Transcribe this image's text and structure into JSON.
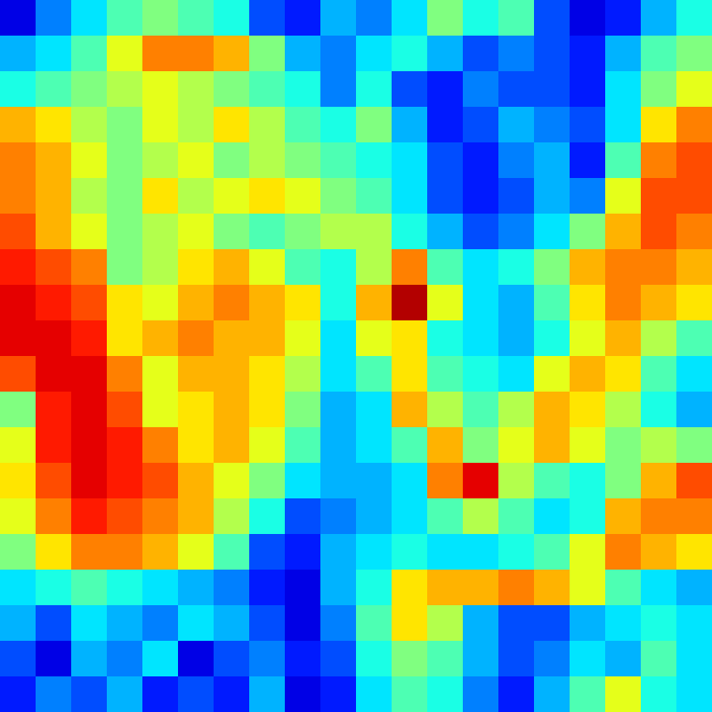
{
  "chart_data": {
    "type": "heatmap",
    "tick_labels": false,
    "grid": false,
    "color": "jet",
    "zlim": [
      0,
      1
    ],
    "cells": [
      [
        0.1,
        0.25,
        0.35,
        0.45,
        0.5,
        0.45,
        0.4,
        0.2,
        0.15,
        0.3,
        0.25,
        0.35,
        0.5,
        0.4,
        0.45,
        0.2,
        0.1,
        0.15,
        0.3,
        0.4
      ],
      [
        0.3,
        0.35,
        0.45,
        0.6,
        0.75,
        0.75,
        0.7,
        0.5,
        0.3,
        0.25,
        0.35,
        0.4,
        0.3,
        0.2,
        0.25,
        0.2,
        0.15,
        0.3,
        0.45,
        0.5
      ],
      [
        0.4,
        0.45,
        0.5,
        0.55,
        0.6,
        0.55,
        0.5,
        0.45,
        0.4,
        0.25,
        0.4,
        0.2,
        0.15,
        0.25,
        0.2,
        0.2,
        0.15,
        0.35,
        0.5,
        0.6
      ],
      [
        0.7,
        0.65,
        0.55,
        0.5,
        0.6,
        0.55,
        0.65,
        0.55,
        0.45,
        0.4,
        0.5,
        0.3,
        0.15,
        0.2,
        0.3,
        0.25,
        0.2,
        0.35,
        0.65,
        0.75
      ],
      [
        0.75,
        0.7,
        0.6,
        0.5,
        0.55,
        0.6,
        0.5,
        0.55,
        0.5,
        0.45,
        0.4,
        0.35,
        0.2,
        0.15,
        0.25,
        0.3,
        0.15,
        0.45,
        0.75,
        0.8
      ],
      [
        0.75,
        0.7,
        0.55,
        0.5,
        0.65,
        0.55,
        0.6,
        0.65,
        0.6,
        0.5,
        0.45,
        0.35,
        0.2,
        0.15,
        0.2,
        0.3,
        0.25,
        0.6,
        0.8,
        0.8
      ],
      [
        0.8,
        0.7,
        0.6,
        0.5,
        0.55,
        0.6,
        0.5,
        0.45,
        0.5,
        0.55,
        0.55,
        0.4,
        0.3,
        0.2,
        0.25,
        0.35,
        0.5,
        0.7,
        0.8,
        0.75
      ],
      [
        0.85,
        0.8,
        0.75,
        0.5,
        0.55,
        0.65,
        0.7,
        0.6,
        0.45,
        0.4,
        0.55,
        0.75,
        0.45,
        0.35,
        0.4,
        0.5,
        0.7,
        0.75,
        0.75,
        0.7
      ],
      [
        0.9,
        0.85,
        0.8,
        0.65,
        0.6,
        0.7,
        0.75,
        0.7,
        0.65,
        0.4,
        0.7,
        0.95,
        0.6,
        0.35,
        0.3,
        0.45,
        0.65,
        0.75,
        0.7,
        0.65
      ],
      [
        0.9,
        0.9,
        0.85,
        0.65,
        0.7,
        0.75,
        0.7,
        0.7,
        0.6,
        0.35,
        0.6,
        0.65,
        0.4,
        0.35,
        0.3,
        0.4,
        0.6,
        0.7,
        0.55,
        0.45
      ],
      [
        0.8,
        0.9,
        0.9,
        0.75,
        0.6,
        0.7,
        0.7,
        0.65,
        0.55,
        0.35,
        0.45,
        0.65,
        0.45,
        0.4,
        0.35,
        0.6,
        0.7,
        0.65,
        0.45,
        0.35
      ],
      [
        0.5,
        0.85,
        0.9,
        0.8,
        0.6,
        0.65,
        0.7,
        0.65,
        0.5,
        0.3,
        0.35,
        0.7,
        0.55,
        0.45,
        0.55,
        0.7,
        0.65,
        0.55,
        0.4,
        0.3
      ],
      [
        0.6,
        0.85,
        0.9,
        0.85,
        0.75,
        0.65,
        0.7,
        0.6,
        0.45,
        0.3,
        0.35,
        0.45,
        0.7,
        0.5,
        0.6,
        0.7,
        0.6,
        0.5,
        0.55,
        0.5
      ],
      [
        0.65,
        0.8,
        0.9,
        0.85,
        0.8,
        0.7,
        0.6,
        0.5,
        0.35,
        0.3,
        0.3,
        0.35,
        0.75,
        0.9,
        0.55,
        0.45,
        0.4,
        0.5,
        0.7,
        0.8
      ],
      [
        0.6,
        0.75,
        0.85,
        0.8,
        0.75,
        0.7,
        0.55,
        0.4,
        0.2,
        0.25,
        0.3,
        0.35,
        0.45,
        0.55,
        0.45,
        0.35,
        0.4,
        0.7,
        0.75,
        0.75
      ],
      [
        0.5,
        0.65,
        0.75,
        0.75,
        0.7,
        0.6,
        0.45,
        0.2,
        0.15,
        0.3,
        0.35,
        0.4,
        0.35,
        0.35,
        0.4,
        0.45,
        0.6,
        0.75,
        0.7,
        0.65
      ],
      [
        0.35,
        0.4,
        0.45,
        0.4,
        0.35,
        0.3,
        0.25,
        0.15,
        0.1,
        0.3,
        0.4,
        0.65,
        0.7,
        0.7,
        0.75,
        0.7,
        0.6,
        0.45,
        0.35,
        0.3
      ],
      [
        0.3,
        0.2,
        0.35,
        0.3,
        0.25,
        0.35,
        0.3,
        0.2,
        0.1,
        0.25,
        0.45,
        0.65,
        0.55,
        0.3,
        0.2,
        0.2,
        0.3,
        0.35,
        0.4,
        0.35
      ],
      [
        0.2,
        0.1,
        0.3,
        0.25,
        0.35,
        0.1,
        0.2,
        0.25,
        0.15,
        0.2,
        0.4,
        0.5,
        0.45,
        0.3,
        0.2,
        0.25,
        0.35,
        0.3,
        0.45,
        0.35
      ],
      [
        0.15,
        0.25,
        0.2,
        0.3,
        0.15,
        0.2,
        0.15,
        0.3,
        0.1,
        0.15,
        0.35,
        0.45,
        0.4,
        0.25,
        0.15,
        0.3,
        0.45,
        0.6,
        0.4,
        0.35
      ]
    ]
  }
}
